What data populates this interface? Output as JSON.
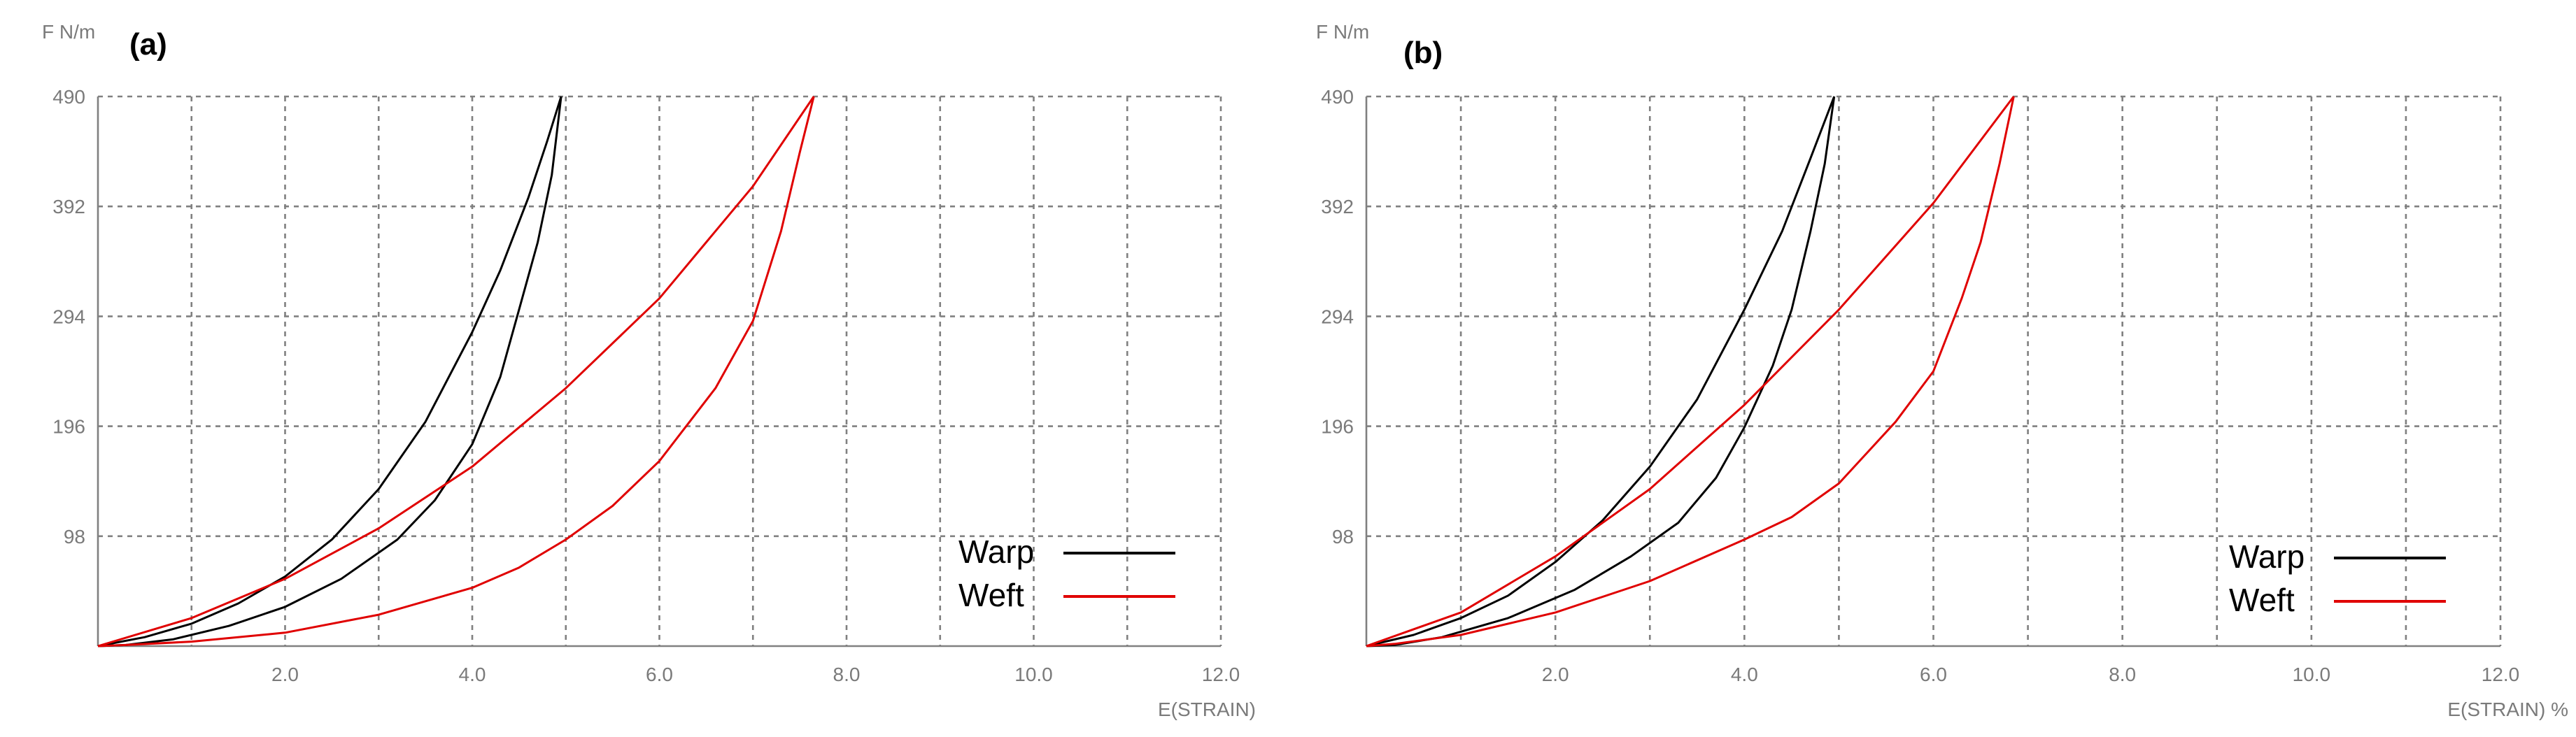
{
  "chart_data": [
    {
      "type": "line",
      "title": "(a)",
      "ylabel": "F N/m",
      "xlabel": "E(STRAIN)",
      "xlim": [
        0,
        12
      ],
      "ylim": [
        0,
        490
      ],
      "x_ticks": [
        "2.0",
        "4.0",
        "6.0",
        "8.0",
        "10.0",
        "12.0"
      ],
      "y_ticks": [
        "98",
        "196",
        "294",
        "392",
        "490"
      ],
      "grid": true,
      "legend_position": "bottom-right",
      "series": [
        {
          "name": "Warp",
          "color": "#000000",
          "branch": "loading",
          "x": [
            0,
            0.5,
            1.0,
            1.5,
            2.0,
            2.5,
            3.0,
            3.5,
            4.0,
            4.3,
            4.6,
            4.8,
            4.95
          ],
          "y": [
            0,
            8,
            20,
            38,
            62,
            95,
            140,
            200,
            280,
            335,
            400,
            450,
            490
          ]
        },
        {
          "name": "Warp",
          "color": "#000000",
          "branch": "unloading",
          "x": [
            4.95,
            4.85,
            4.7,
            4.5,
            4.3,
            4.0,
            3.6,
            3.2,
            2.6,
            2.0,
            1.4,
            0.8,
            0.3,
            0
          ],
          "y": [
            490,
            420,
            360,
            300,
            240,
            180,
            130,
            95,
            60,
            35,
            18,
            6,
            1,
            0
          ]
        },
        {
          "name": "Weft",
          "color": "#e00000",
          "branch": "loading",
          "x": [
            0,
            1.0,
            2.0,
            3.0,
            4.0,
            5.0,
            6.0,
            7.0,
            7.65
          ],
          "y": [
            0,
            25,
            60,
            105,
            160,
            230,
            310,
            410,
            490
          ]
        },
        {
          "name": "Weft",
          "color": "#e00000",
          "branch": "unloading",
          "x": [
            7.65,
            7.5,
            7.3,
            7.0,
            6.6,
            6.0,
            5.5,
            5.0,
            4.5,
            4.0,
            3.0,
            2.0,
            1.0,
            0.3,
            0
          ],
          "y": [
            490,
            440,
            370,
            290,
            230,
            165,
            125,
            95,
            70,
            52,
            28,
            12,
            4,
            1,
            0
          ]
        }
      ]
    },
    {
      "type": "line",
      "title": "(b)",
      "ylabel": "F N/m",
      "xlabel": "E(STRAIN) %",
      "xlim": [
        0,
        12
      ],
      "ylim": [
        0,
        490
      ],
      "x_ticks": [
        "2.0",
        "4.0",
        "6.0",
        "8.0",
        "10.0",
        "12.0"
      ],
      "y_ticks": [
        "98",
        "196",
        "294",
        "392",
        "490"
      ],
      "grid": true,
      "legend_position": "bottom-right",
      "series": [
        {
          "name": "Warp",
          "color": "#000000",
          "branch": "loading",
          "x": [
            0,
            0.5,
            1.0,
            1.5,
            2.0,
            2.5,
            3.0,
            3.5,
            4.0,
            4.4,
            4.7,
            4.95
          ],
          "y": [
            0,
            10,
            25,
            45,
            75,
            112,
            160,
            220,
            300,
            370,
            435,
            490
          ]
        },
        {
          "name": "Warp",
          "color": "#000000",
          "branch": "unloading",
          "x": [
            4.95,
            4.85,
            4.7,
            4.5,
            4.3,
            4.0,
            3.7,
            3.3,
            2.8,
            2.2,
            1.5,
            0.8,
            0.3,
            0
          ],
          "y": [
            490,
            430,
            370,
            300,
            250,
            195,
            150,
            110,
            80,
            50,
            25,
            8,
            1,
            0
          ]
        },
        {
          "name": "Weft",
          "color": "#e00000",
          "branch": "loading",
          "x": [
            0,
            1.0,
            2.0,
            3.0,
            4.0,
            5.0,
            6.0,
            6.85
          ],
          "y": [
            0,
            30,
            80,
            140,
            215,
            300,
            395,
            490
          ]
        },
        {
          "name": "Weft",
          "color": "#e00000",
          "branch": "unloading",
          "x": [
            6.85,
            6.7,
            6.5,
            6.3,
            6.0,
            5.6,
            5.0,
            4.5,
            4.0,
            3.0,
            2.0,
            1.0,
            0.3,
            0
          ],
          "y": [
            490,
            430,
            360,
            310,
            245,
            200,
            145,
            115,
            95,
            58,
            30,
            10,
            2,
            0
          ]
        }
      ]
    }
  ]
}
